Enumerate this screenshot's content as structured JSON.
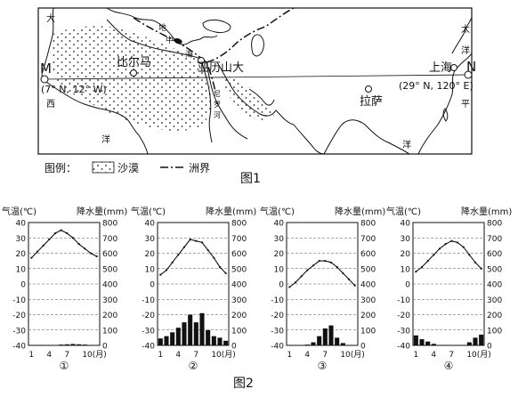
{
  "map": {
    "edge_labels": {
      "top_left": "大",
      "left_mid": "西",
      "bottom_left": "洋",
      "top_right": "太",
      "right_upper": "洋",
      "right_mid": "平",
      "bottom_right": "洋"
    },
    "sea_labels": [
      "地",
      "中",
      "海"
    ],
    "river_label": "尼",
    "river_label_2": "罗",
    "river_label_3": "河",
    "cities": {
      "bilma": "比尔马",
      "alexandria": "亚历山大",
      "shanghai": "上海",
      "lhasa": "拉萨"
    },
    "point_m": {
      "name": "M",
      "coord": "(7° N, 12° W)"
    },
    "point_n": {
      "name": "N",
      "coord": "(29° N, 120° E)"
    },
    "legend": {
      "title": "图例：",
      "desert": "沙漠",
      "boundary": "洲界"
    },
    "caption": "图1"
  },
  "fig2_caption": "图2",
  "climate_charts": [
    {
      "id": "①",
      "left_axis_title": "气温(℃)",
      "right_axis_title": "降水量(mm)",
      "temp_ticks": [
        40,
        30,
        20,
        10,
        0,
        -10,
        -20,
        -30,
        -40
      ],
      "precip_ticks": [
        800,
        700,
        600,
        500,
        400,
        300,
        200,
        100,
        0
      ],
      "month_ticks": [
        "1",
        "4",
        "7",
        "10(月)"
      ],
      "temperature_c": [
        17,
        21,
        25,
        29,
        33,
        35,
        33,
        30,
        26,
        23,
        20,
        18
      ],
      "precipitation_mm": [
        0,
        0,
        0,
        0,
        0,
        5,
        7,
        9,
        7,
        5,
        0,
        0
      ]
    },
    {
      "id": "②",
      "left_axis_title": "气温(℃)",
      "right_axis_title": "降水量(mm)",
      "temp_ticks": [
        40,
        30,
        20,
        10,
        0,
        -10,
        -20,
        -30,
        -40
      ],
      "precip_ticks": [
        800,
        700,
        600,
        500,
        400,
        300,
        200,
        100,
        0
      ],
      "month_ticks": [
        "1",
        "4",
        "7",
        "10(月)"
      ],
      "temperature_c": [
        6,
        9,
        14,
        19,
        24,
        29,
        28,
        27,
        22,
        17,
        11,
        7
      ],
      "precipitation_mm": [
        45,
        60,
        85,
        115,
        150,
        200,
        150,
        210,
        100,
        60,
        50,
        30
      ]
    },
    {
      "id": "③",
      "left_axis_title": "气温(℃)",
      "right_axis_title": "降水量(mm)",
      "temp_ticks": [
        40,
        30,
        20,
        10,
        0,
        -10,
        -20,
        -30,
        -40
      ],
      "precip_ticks": [
        800,
        700,
        600,
        500,
        400,
        300,
        200,
        100,
        0
      ],
      "month_ticks": [
        "1",
        "4",
        "7",
        "10(月)"
      ],
      "temperature_c": [
        -2,
        1,
        5,
        9,
        12,
        15,
        15,
        14,
        11,
        7,
        3,
        -1
      ],
      "precipitation_mm": [
        0,
        0,
        0,
        5,
        20,
        60,
        110,
        130,
        50,
        15,
        0,
        0
      ]
    },
    {
      "id": "④",
      "left_axis_title": "气温(℃)",
      "right_axis_title": "降水量(mm)",
      "temp_ticks": [
        40,
        30,
        20,
        10,
        0,
        -10,
        -20,
        -30,
        -40
      ],
      "precip_ticks": [
        800,
        700,
        600,
        500,
        400,
        300,
        200,
        100,
        0
      ],
      "month_ticks": [
        "1",
        "4",
        "7",
        "10(月)"
      ],
      "temperature_c": [
        8,
        11,
        15,
        19,
        23,
        26,
        28,
        27,
        24,
        19,
        14,
        10
      ],
      "precipitation_mm": [
        65,
        40,
        25,
        10,
        0,
        0,
        0,
        0,
        0,
        20,
        50,
        70
      ]
    }
  ]
}
